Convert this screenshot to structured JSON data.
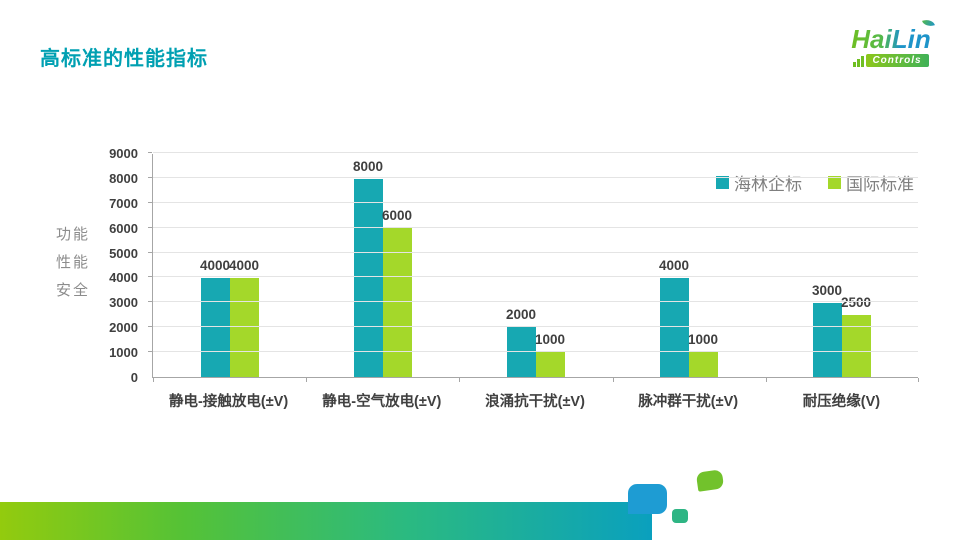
{
  "slide": {
    "title": "高标准的性能指标"
  },
  "logo": {
    "brand_part1": "Hai",
    "brand_part2": "Lin",
    "subtitle": "Controls",
    "icons": [
      "leaf-icon",
      "equalizer-bars-icon"
    ],
    "brand_green": "#6FBF22",
    "brand_blue": "#1E94C9"
  },
  "chart_data": {
    "type": "bar",
    "title": "",
    "categories": [
      "静电-接触放电(±V)",
      "静电-空气放电(±V)",
      "浪涌抗干扰(±V)",
      "脉冲群干扰(±V)",
      "耐压绝缘(V)"
    ],
    "series": [
      {
        "name": "海林企标",
        "color": "#17A8B2",
        "values": [
          4000,
          8000,
          2000,
          4000,
          3000
        ]
      },
      {
        "name": "国际标准",
        "color": "#A4D82A",
        "values": [
          4000,
          6000,
          1000,
          1000,
          2500
        ]
      }
    ],
    "ylabel_lines": [
      "功能",
      "性能",
      "安全"
    ],
    "ylim": [
      0,
      9000
    ],
    "ytick_step": 1000,
    "grid": true,
    "legend_position": "top-right",
    "value_labels_shown": true
  },
  "colors": {
    "title_teal": "#00A0B2",
    "axis_line": "#A6A6A6",
    "gridline": "#E4E4E4",
    "tick_label": "#3F3F3F",
    "category_label": "#404040",
    "legend_text": "#7F7F7F",
    "band_gradient_start": "#93CB0E",
    "band_gradient_end": "#0AA0BE",
    "deco_blue": "#1E9CD3",
    "deco_teal": "#2EB584",
    "deco_green": "#72C22C"
  }
}
